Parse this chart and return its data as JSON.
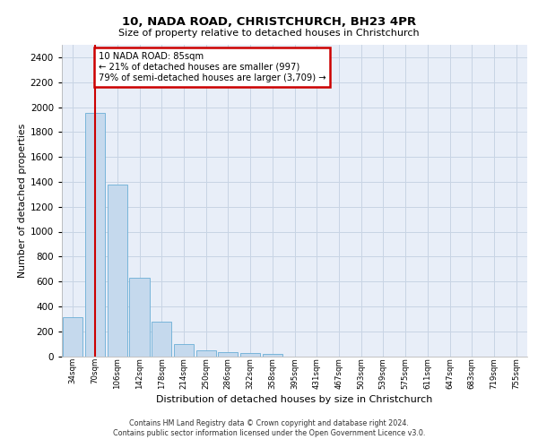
{
  "title1": "10, NADA ROAD, CHRISTCHURCH, BH23 4PR",
  "title2": "Size of property relative to detached houses in Christchurch",
  "xlabel": "Distribution of detached houses by size in Christchurch",
  "ylabel": "Number of detached properties",
  "bar_labels": [
    "34sqm",
    "70sqm",
    "106sqm",
    "142sqm",
    "178sqm",
    "214sqm",
    "250sqm",
    "286sqm",
    "322sqm",
    "358sqm",
    "395sqm",
    "431sqm",
    "467sqm",
    "503sqm",
    "539sqm",
    "575sqm",
    "611sqm",
    "647sqm",
    "683sqm",
    "719sqm",
    "755sqm"
  ],
  "bar_values": [
    315,
    1950,
    1380,
    630,
    275,
    100,
    48,
    30,
    25,
    20,
    0,
    0,
    0,
    0,
    0,
    0,
    0,
    0,
    0,
    0,
    0
  ],
  "bar_color": "#c5d9ed",
  "bar_edge_color": "#6aaed6",
  "vline_x": 1.0,
  "vline_color": "#cc0000",
  "annotation_text": "10 NADA ROAD: 85sqm\n← 21% of detached houses are smaller (997)\n79% of semi-detached houses are larger (3,709) →",
  "annotation_box_color": "#ffffff",
  "annotation_box_edge": "#cc0000",
  "ylim": [
    0,
    2500
  ],
  "yticks": [
    0,
    200,
    400,
    600,
    800,
    1000,
    1200,
    1400,
    1600,
    1800,
    2000,
    2200,
    2400
  ],
  "grid_color": "#c8d4e4",
  "bg_color": "#e8eef8",
  "footer1": "Contains HM Land Registry data © Crown copyright and database right 2024.",
  "footer2": "Contains public sector information licensed under the Open Government Licence v3.0."
}
